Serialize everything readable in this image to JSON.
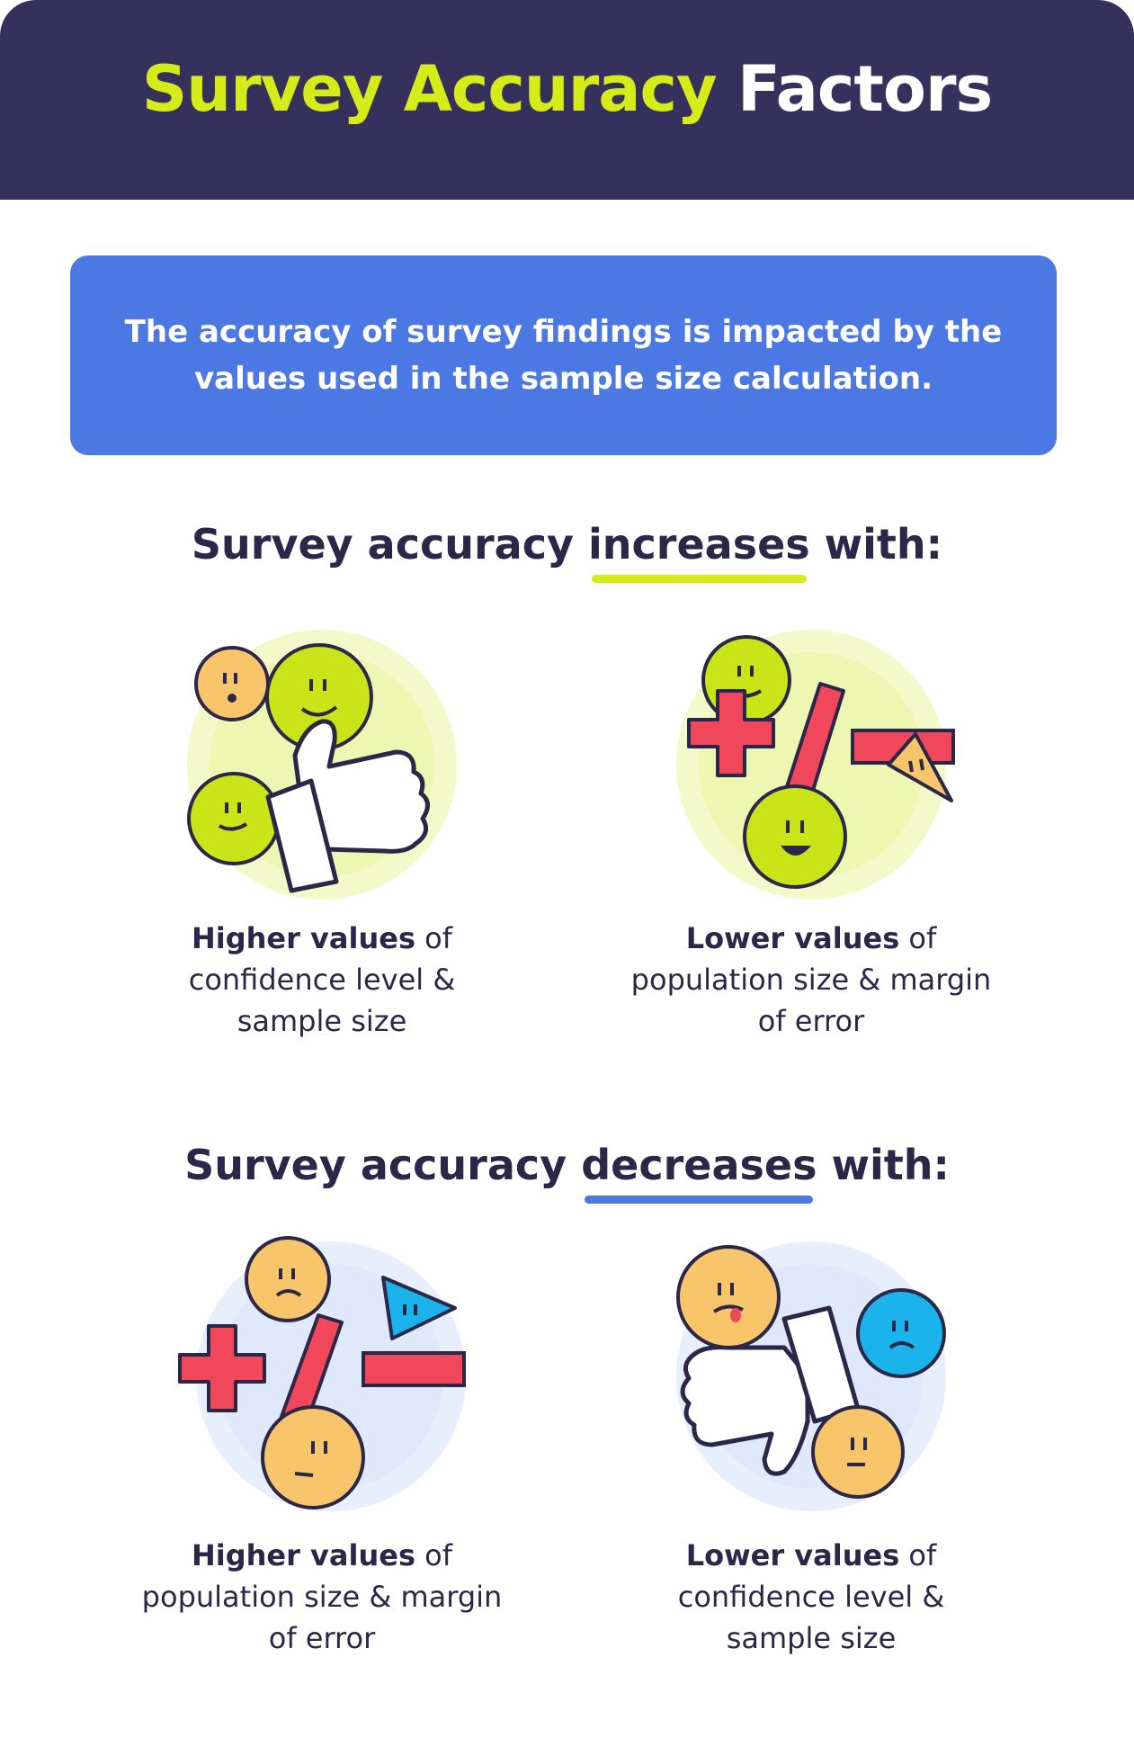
{
  "header": {
    "title_highlight": "Survey Accuracy",
    "title_rest": "Factors"
  },
  "intro": {
    "text": "The accuracy of survey findings is impacted by the values used in the sample size calculation."
  },
  "increases": {
    "heading_before": "Survey accuracy ",
    "heading_emphasis": "increases",
    "heading_after": " with:",
    "items": [
      {
        "bold": "Higher values",
        "rest": " of confidence level & sample size"
      },
      {
        "bold": "Lower values",
        "rest": " of population size & margin of error"
      }
    ]
  },
  "decreases": {
    "heading_before": "Survey accuracy ",
    "heading_emphasis": "decreases",
    "heading_after": " with:",
    "items": [
      {
        "bold": "Higher values",
        "rest": " of population size & margin of error"
      },
      {
        "bold": "Lower values",
        "rest": " of confidence level & sample size"
      }
    ]
  },
  "colors": {
    "header_bg": "#36305c",
    "accent_lime": "#d6ec18",
    "accent_blue": "#4c78e3",
    "text_dark": "#2b2748",
    "symbol_red": "#f0475a",
    "face_orange": "#f8c56a",
    "face_lime": "#c9e417",
    "face_blue": "#1ab3ec"
  },
  "icons": [
    "thumbs-up-icon",
    "math-symbols-icon",
    "thumbs-down-icon",
    "smiley-face-icon"
  ]
}
